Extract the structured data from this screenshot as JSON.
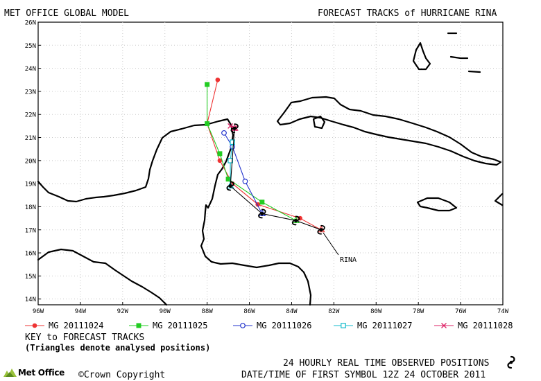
{
  "header": {
    "left_title": "MET OFFICE GLOBAL MODEL",
    "right_title": "FORECAST TRACKS of HURRICANE RINA"
  },
  "map": {
    "lat_labels": [
      "26N",
      "25N",
      "24N",
      "23N",
      "22N",
      "21N",
      "20N",
      "19N",
      "18N",
      "17N",
      "16N",
      "15N",
      "14N"
    ],
    "lon_labels": [
      "96W",
      "94W",
      "92W",
      "90W",
      "88W",
      "86W",
      "84W",
      "82W",
      "80W",
      "78W",
      "76W",
      "74W"
    ],
    "storm_label": "RINA",
    "observed_positions": [
      {
        "lon": -82.6,
        "lat": 17.0
      },
      {
        "lon": -83.8,
        "lat": 17.4
      },
      {
        "lon": -85.4,
        "lat": 17.7
      },
      {
        "lon": -86.9,
        "lat": 18.9
      },
      {
        "lon": -86.7,
        "lat": 21.4
      }
    ],
    "colors": {
      "coast": "#000000",
      "grid": "#c8c8c8",
      "observed": "#000000"
    }
  },
  "chart_data": {
    "type": "line",
    "title": "FORECAST TRACKS of HURRICANE RINA",
    "xlabel": "",
    "ylabel": "",
    "xlim": [
      -96,
      -74
    ],
    "ylim": [
      13.75,
      26
    ],
    "series": [
      {
        "name": "MG 20111024",
        "color": "#ee3333",
        "marker": "circle-filled",
        "points": [
          [
            -82.6,
            17.0
          ],
          [
            -83.6,
            17.5
          ],
          [
            -85.6,
            18.1
          ],
          [
            -86.8,
            19.0
          ],
          [
            -87.4,
            20.0
          ],
          [
            -88.0,
            21.6
          ],
          [
            -87.5,
            23.5
          ]
        ]
      },
      {
        "name": "MG 20111025",
        "color": "#22cc22",
        "marker": "square-filled",
        "points": [
          [
            -83.8,
            17.4
          ],
          [
            -85.4,
            18.2
          ],
          [
            -87.0,
            19.2
          ],
          [
            -87.4,
            20.3
          ],
          [
            -88.0,
            21.6
          ],
          [
            -88.0,
            23.3
          ]
        ]
      },
      {
        "name": "MG 20111026",
        "color": "#2233cc",
        "marker": "circle-open",
        "points": [
          [
            -85.4,
            17.7
          ],
          [
            -86.2,
            19.1
          ],
          [
            -86.8,
            20.6
          ],
          [
            -87.2,
            21.2
          ]
        ]
      },
      {
        "name": "MG 20111027",
        "color": "#11bbcc",
        "marker": "square-open",
        "points": [
          [
            -86.9,
            18.9
          ],
          [
            -86.9,
            20.0
          ],
          [
            -86.8,
            20.8
          ]
        ]
      },
      {
        "name": "MG 20111028",
        "color": "#dd2266",
        "marker": "cross",
        "points": [
          [
            -86.7,
            21.4
          ],
          [
            -86.9,
            21.5
          ]
        ]
      }
    ]
  },
  "legend": {
    "items": [
      {
        "label": "MG 20111024",
        "color": "#ee3333",
        "marker": "circle-filled"
      },
      {
        "label": "MG 20111025",
        "color": "#22cc22",
        "marker": "square-filled"
      },
      {
        "label": "MG 20111026",
        "color": "#2233cc",
        "marker": "circle-open"
      },
      {
        "label": "MG 20111027",
        "color": "#11bbcc",
        "marker": "square-open"
      },
      {
        "label": "MG 20111028",
        "color": "#dd2266",
        "marker": "cross"
      }
    ],
    "key_title": "KEY to FORECAST TRACKS",
    "key_note": "(Triangles denote analysed positions)"
  },
  "footer": {
    "observed_note": "24 HOURLY REAL TIME OBSERVED POSITIONS",
    "copyright": "©Crown Copyright",
    "logo_text": "Met Office",
    "first_symbol": "DATE/TIME OF FIRST SYMBOL 12Z 24 OCTOBER 2011"
  }
}
